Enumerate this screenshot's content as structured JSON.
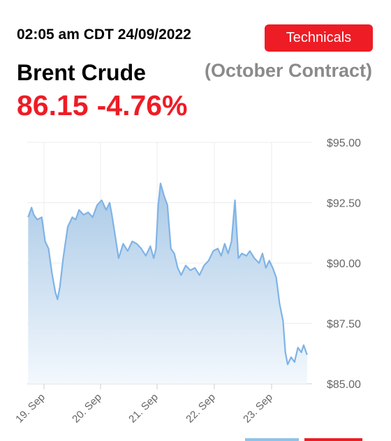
{
  "header": {
    "timestamp": "02:05 am CDT 24/09/2022",
    "technicals_label": "Technicals",
    "instrument": "Brent Crude",
    "contract": "(October Contract)",
    "price": "86.15",
    "change": "-4.76%"
  },
  "colors": {
    "accent": "#ee1c25",
    "line": "#7fb3e6",
    "area_top": "#a9c9e6",
    "area_bottom": "#f3f8fd",
    "grid": "#ececec",
    "tab_blue": "#8fc2e8"
  },
  "chart_data": {
    "type": "area",
    "ylim": [
      85,
      95
    ],
    "yticks": [
      "$95.00",
      "$92.50",
      "$90.00",
      "$87.50",
      "$85.00"
    ],
    "ytick_values": [
      95,
      92.5,
      90,
      87.5,
      85
    ],
    "xticks": [
      "19. Sep",
      "20. Sep",
      "21. Sep",
      "22. Sep",
      "23. Sep"
    ],
    "xtick_values": [
      0,
      1,
      2,
      3,
      4
    ],
    "grid": true,
    "points": [
      [
        -0.28,
        91.9
      ],
      [
        -0.22,
        92.3
      ],
      [
        -0.18,
        92.0
      ],
      [
        -0.12,
        91.8
      ],
      [
        -0.04,
        91.9
      ],
      [
        0.02,
        90.9
      ],
      [
        0.08,
        90.6
      ],
      [
        0.14,
        89.6
      ],
      [
        0.2,
        88.8
      ],
      [
        0.24,
        88.5
      ],
      [
        0.28,
        89.0
      ],
      [
        0.34,
        90.2
      ],
      [
        0.42,
        91.5
      ],
      [
        0.5,
        91.9
      ],
      [
        0.56,
        91.8
      ],
      [
        0.62,
        92.2
      ],
      [
        0.7,
        92.0
      ],
      [
        0.78,
        92.1
      ],
      [
        0.86,
        91.9
      ],
      [
        0.94,
        92.4
      ],
      [
        1.02,
        92.6
      ],
      [
        1.1,
        92.2
      ],
      [
        1.16,
        92.5
      ],
      [
        1.2,
        92.0
      ],
      [
        1.26,
        91.1
      ],
      [
        1.32,
        90.2
      ],
      [
        1.4,
        90.8
      ],
      [
        1.48,
        90.5
      ],
      [
        1.56,
        90.9
      ],
      [
        1.64,
        90.8
      ],
      [
        1.72,
        90.6
      ],
      [
        1.8,
        90.3
      ],
      [
        1.88,
        90.7
      ],
      [
        1.94,
        90.2
      ],
      [
        1.98,
        90.6
      ],
      [
        2.02,
        92.4
      ],
      [
        2.06,
        93.3
      ],
      [
        2.12,
        92.8
      ],
      [
        2.18,
        92.4
      ],
      [
        2.24,
        90.6
      ],
      [
        2.3,
        90.4
      ],
      [
        2.36,
        89.8
      ],
      [
        2.42,
        89.5
      ],
      [
        2.5,
        89.9
      ],
      [
        2.58,
        89.7
      ],
      [
        2.66,
        89.8
      ],
      [
        2.74,
        89.5
      ],
      [
        2.82,
        89.9
      ],
      [
        2.9,
        90.1
      ],
      [
        2.98,
        90.5
      ],
      [
        3.06,
        90.6
      ],
      [
        3.12,
        90.3
      ],
      [
        3.18,
        90.8
      ],
      [
        3.24,
        90.4
      ],
      [
        3.3,
        90.9
      ],
      [
        3.36,
        92.6
      ],
      [
        3.42,
        90.2
      ],
      [
        3.48,
        90.4
      ],
      [
        3.56,
        90.3
      ],
      [
        3.62,
        90.5
      ],
      [
        3.7,
        90.2
      ],
      [
        3.78,
        90.0
      ],
      [
        3.84,
        90.4
      ],
      [
        3.9,
        89.8
      ],
      [
        3.96,
        90.1
      ],
      [
        4.02,
        89.8
      ],
      [
        4.08,
        89.4
      ],
      [
        4.14,
        88.3
      ],
      [
        4.2,
        87.6
      ],
      [
        4.24,
        86.3
      ],
      [
        4.28,
        85.8
      ],
      [
        4.34,
        86.1
      ],
      [
        4.4,
        85.9
      ],
      [
        4.46,
        86.5
      ],
      [
        4.52,
        86.3
      ],
      [
        4.56,
        86.6
      ],
      [
        4.62,
        86.2
      ]
    ]
  }
}
